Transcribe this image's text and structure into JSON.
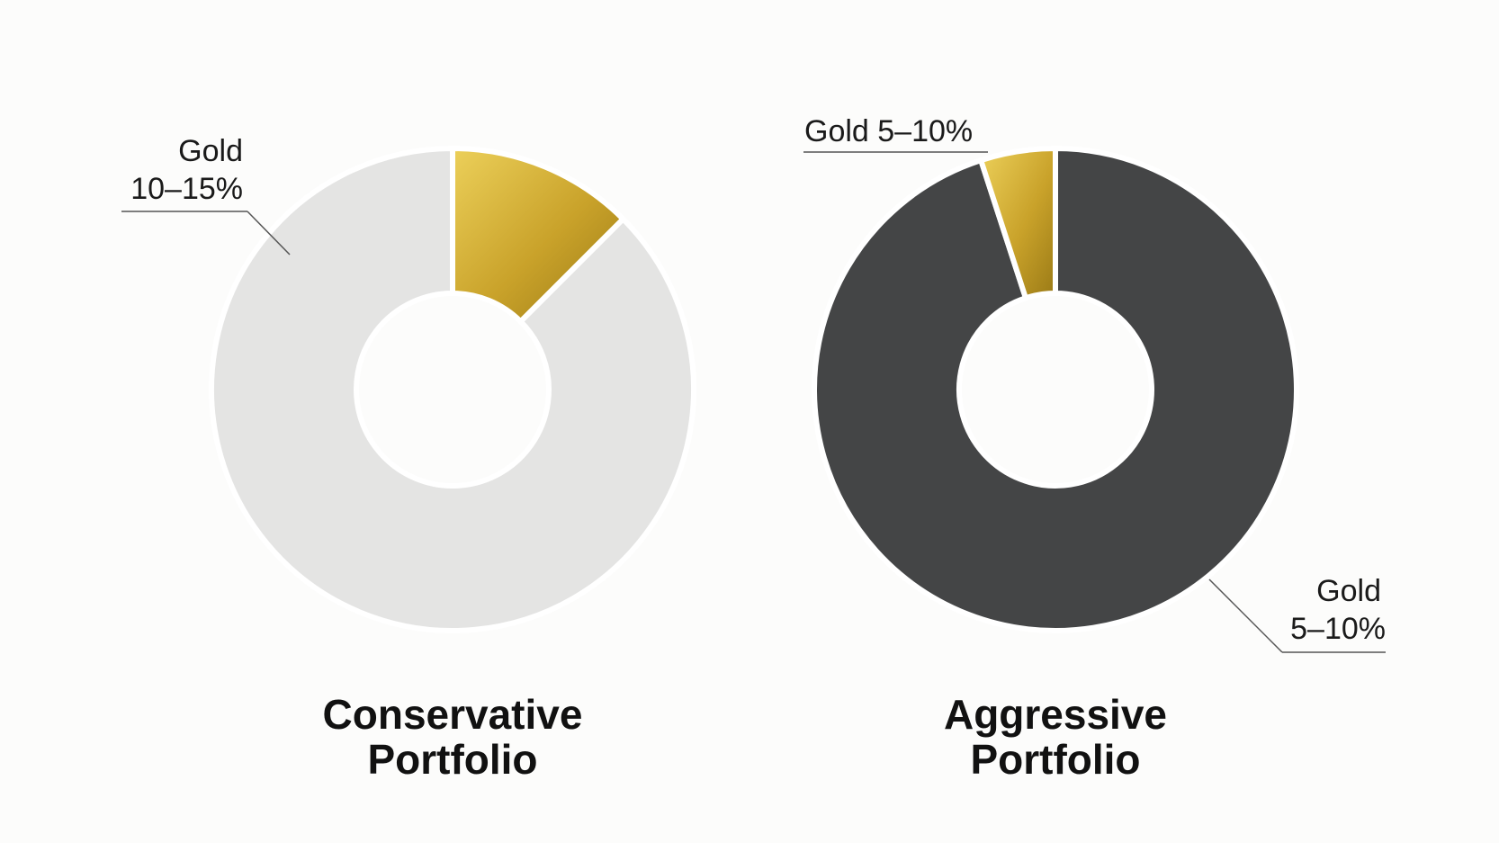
{
  "colors": {
    "background": "#fcfcfb",
    "gold_light": "#e6c43c",
    "gold_dark": "#a88418",
    "separator": "#ffffff",
    "text": "#111111"
  },
  "chart_data": [
    {
      "type": "pie",
      "donut": true,
      "title_lines": [
        "Conservative",
        "Portfolio"
      ],
      "slices": [
        {
          "name": "Gold",
          "value": 12.5,
          "color": "gold-gradient"
        },
        {
          "name": "",
          "value": 87.5,
          "color": "#e4e4e3"
        }
      ],
      "annotations": [
        {
          "lines": [
            "Gold",
            "10–15%"
          ],
          "placement": "top-left"
        }
      ]
    },
    {
      "type": "pie",
      "donut": true,
      "title_lines": [
        "Aggressive",
        "Portfolio"
      ],
      "slices": [
        {
          "name": "",
          "value": 95,
          "color": "#444546"
        },
        {
          "name": "Gold",
          "value": 5,
          "color": "gold-gradient"
        }
      ],
      "annotations": [
        {
          "lines": [
            "Gold 5–10%"
          ],
          "placement": "top-left"
        },
        {
          "lines": [
            "Gold",
            "5–10%"
          ],
          "placement": "bottom-right"
        }
      ]
    }
  ]
}
